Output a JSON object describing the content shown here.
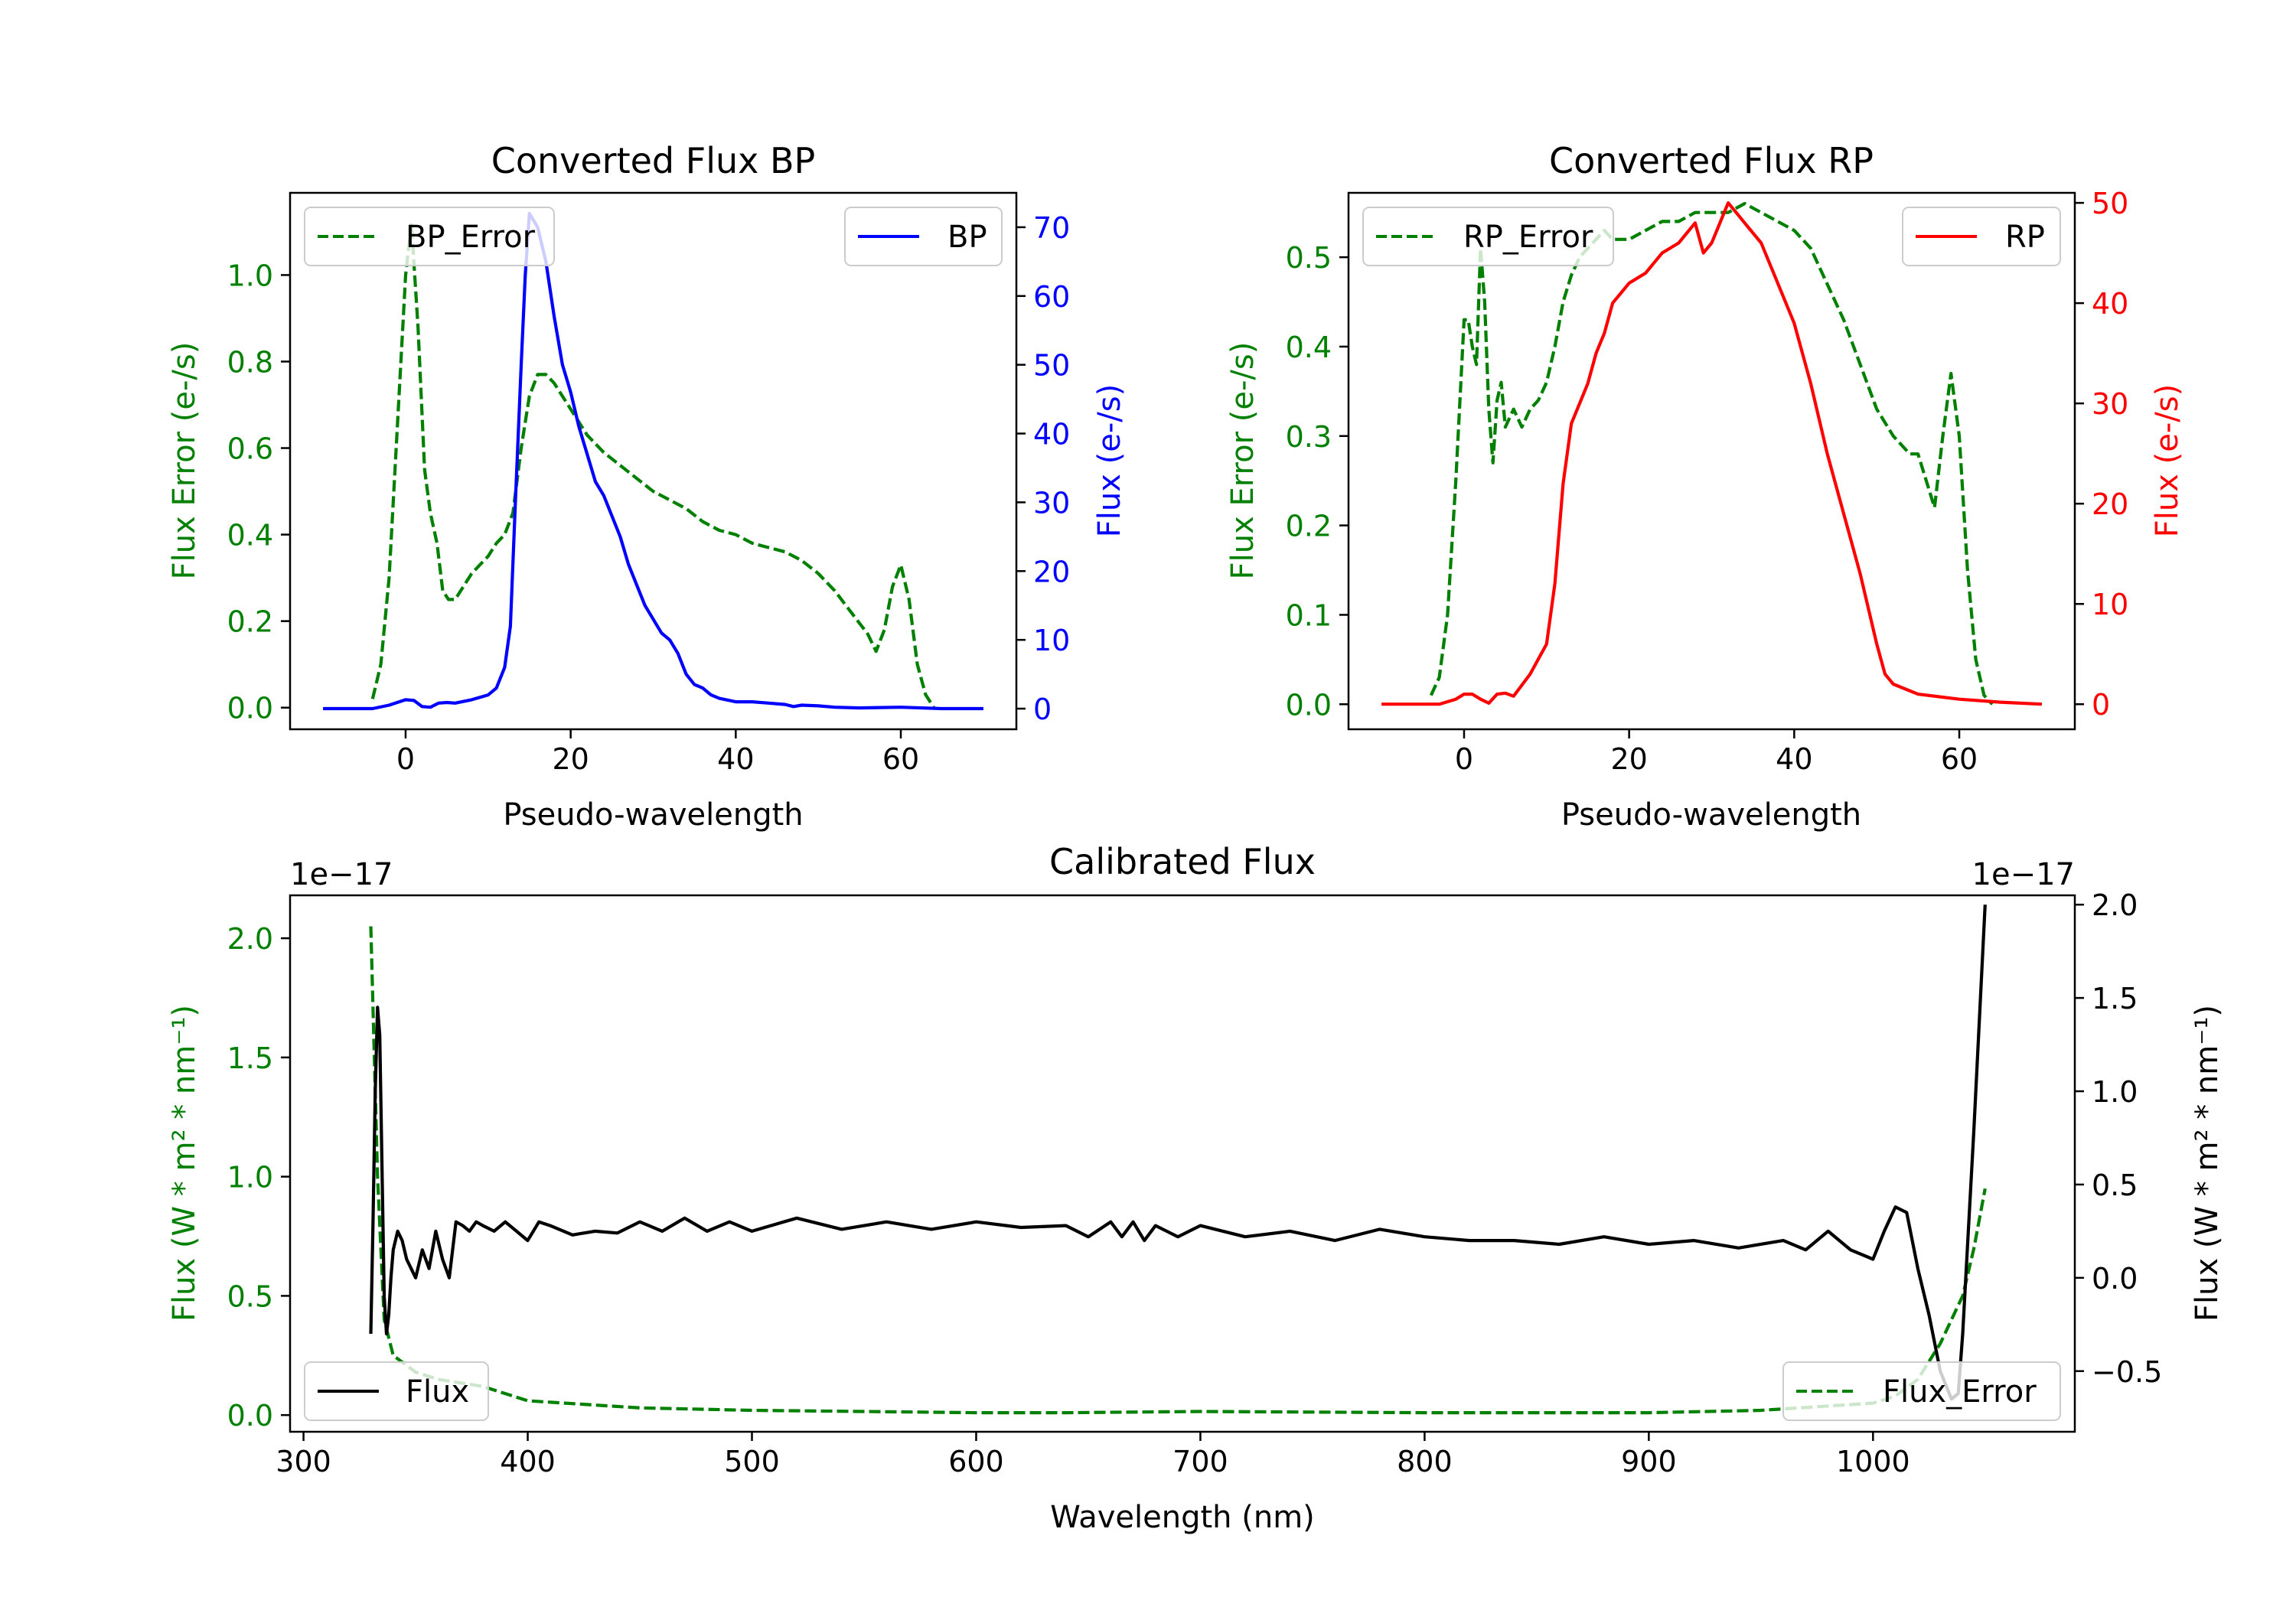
{
  "chart_data": [
    {
      "type": "line",
      "title": "Converted Flux BP",
      "xlabel": "Pseudo-wavelength",
      "ylabel_left": "Flux Error (e-/s)",
      "ylabel_right": "Flux (e-/s)",
      "xlim": [
        -14,
        74
      ],
      "ylim_left": [
        -0.05,
        1.19
      ],
      "ylim_right": [
        -3,
        75
      ],
      "xticks": [
        "0",
        "20",
        "40",
        "60"
      ],
      "yticks_left": [
        "0.0",
        "0.2",
        "0.4",
        "0.6",
        "0.8",
        "1.0"
      ],
      "yticks_right": [
        "0",
        "10",
        "20",
        "30",
        "40",
        "50",
        "60",
        "70"
      ],
      "legend_left": "BP_Error",
      "legend_right": "BP",
      "colors": {
        "error": "#008000",
        "flux": "#0000ff"
      },
      "series": [
        {
          "name": "BP_Error",
          "axis": "left",
          "style": "dashed",
          "x": [
            -4,
            -3,
            -2,
            -1,
            0,
            0.7,
            1.5,
            2.3,
            3,
            3.8,
            4.5,
            5.2,
            6,
            7,
            8,
            9,
            10,
            11,
            12,
            13,
            14,
            15,
            16,
            17,
            18,
            19,
            20,
            21,
            22,
            24,
            26,
            28,
            30,
            32,
            34,
            36,
            38,
            40,
            42,
            44,
            46,
            48,
            50,
            52,
            54,
            56,
            57,
            58,
            59,
            60,
            61,
            62,
            63,
            64
          ],
          "y": [
            0.02,
            0.1,
            0.3,
            0.65,
            1.0,
            1.12,
            0.88,
            0.55,
            0.45,
            0.38,
            0.27,
            0.25,
            0.25,
            0.28,
            0.31,
            0.33,
            0.35,
            0.38,
            0.4,
            0.45,
            0.6,
            0.72,
            0.77,
            0.77,
            0.75,
            0.72,
            0.69,
            0.66,
            0.63,
            0.59,
            0.56,
            0.53,
            0.5,
            0.48,
            0.46,
            0.43,
            0.41,
            0.4,
            0.38,
            0.37,
            0.36,
            0.34,
            0.31,
            0.27,
            0.22,
            0.17,
            0.13,
            0.18,
            0.28,
            0.33,
            0.25,
            0.1,
            0.03,
            0.0
          ]
        },
        {
          "name": "BP",
          "axis": "right",
          "style": "solid",
          "x": [
            -10,
            -7,
            -4,
            -2,
            0,
            1,
            2,
            3,
            4,
            5,
            6,
            8,
            10,
            11,
            12,
            12.7,
            13.3,
            14,
            14.5,
            15,
            15.5,
            16,
            17,
            18,
            19,
            20,
            21,
            22,
            23,
            24,
            25,
            26,
            27,
            28,
            29,
            30,
            31,
            32,
            33,
            34,
            35,
            36,
            37,
            38,
            40,
            42,
            44,
            46,
            47,
            48,
            50,
            52,
            55,
            60,
            65,
            70
          ],
          "y": [
            0,
            0,
            0,
            0.5,
            1.3,
            1.2,
            0.3,
            0.2,
            0.8,
            0.9,
            0.8,
            1.3,
            2,
            3,
            6,
            12,
            30,
            50,
            63,
            72,
            71,
            70,
            65,
            57,
            50,
            46,
            41,
            37,
            33,
            31,
            28,
            25,
            21,
            18,
            15,
            13,
            11,
            10,
            8,
            5,
            3.5,
            3,
            2,
            1.5,
            1,
            1,
            0.8,
            0.6,
            0.3,
            0.5,
            0.4,
            0.2,
            0.1,
            0.2,
            0,
            0
          ]
        }
      ]
    },
    {
      "type": "line",
      "title": "Converted Flux RP",
      "xlabel": "Pseudo-wavelength",
      "ylabel_left": "Flux Error (e-/s)",
      "ylabel_right": "Flux (e-/s)",
      "xlim": [
        -14,
        74
      ],
      "ylim_left": [
        -0.028,
        0.572
      ],
      "ylim_right": [
        -2.5,
        51
      ],
      "xticks": [
        "0",
        "20",
        "40",
        "60"
      ],
      "yticks_left": [
        "0.0",
        "0.1",
        "0.2",
        "0.3",
        "0.4",
        "0.5"
      ],
      "yticks_right": [
        "0",
        "10",
        "20",
        "30",
        "40",
        "50"
      ],
      "legend_left": "RP_Error",
      "legend_right": "RP",
      "colors": {
        "error": "#008000",
        "flux": "#ff0000"
      },
      "series": [
        {
          "name": "RP_Error",
          "axis": "left",
          "style": "dashed",
          "x": [
            -4,
            -3,
            -2,
            -1,
            0,
            0.5,
            1,
            1.5,
            2,
            2.5,
            3,
            3.5,
            4,
            4.5,
            5,
            6,
            7,
            8,
            9,
            10,
            11,
            12,
            13,
            14,
            15,
            16,
            17,
            18,
            20,
            22,
            24,
            26,
            28,
            30,
            32,
            34,
            36,
            38,
            40,
            42,
            44,
            46,
            48,
            50,
            52,
            54,
            55,
            56,
            57,
            58,
            59,
            60,
            61,
            62,
            63,
            64
          ],
          "y": [
            0.01,
            0.03,
            0.1,
            0.25,
            0.43,
            0.43,
            0.4,
            0.38,
            0.51,
            0.45,
            0.33,
            0.27,
            0.34,
            0.36,
            0.31,
            0.33,
            0.31,
            0.33,
            0.34,
            0.36,
            0.4,
            0.45,
            0.48,
            0.5,
            0.51,
            0.52,
            0.53,
            0.52,
            0.52,
            0.53,
            0.54,
            0.54,
            0.55,
            0.55,
            0.55,
            0.56,
            0.55,
            0.54,
            0.53,
            0.51,
            0.47,
            0.43,
            0.38,
            0.33,
            0.3,
            0.28,
            0.28,
            0.25,
            0.22,
            0.3,
            0.37,
            0.3,
            0.15,
            0.05,
            0.01,
            0.0
          ]
        },
        {
          "name": "RP",
          "axis": "right",
          "style": "solid",
          "x": [
            -10,
            -6,
            -3,
            -1,
            0,
            1,
            2,
            3,
            4,
            5,
            6,
            8,
            10,
            11,
            12,
            13,
            14,
            15,
            16,
            17,
            18,
            19,
            20,
            22,
            24,
            26,
            28,
            29,
            30,
            31,
            32,
            33,
            34,
            36,
            38,
            40,
            42,
            44,
            46,
            48,
            50,
            51,
            52,
            55,
            60,
            65,
            70
          ],
          "y": [
            0,
            0,
            0,
            0.5,
            1,
            1,
            0.5,
            0.1,
            1,
            1.1,
            0.8,
            3,
            6,
            12,
            22,
            28,
            30,
            32,
            35,
            37,
            40,
            41,
            42,
            43,
            45,
            46,
            48,
            45,
            46,
            48,
            50,
            49,
            48,
            46,
            42,
            38,
            32,
            25,
            19,
            13,
            6,
            3,
            2,
            1,
            0.5,
            0.2,
            0
          ]
        }
      ]
    },
    {
      "type": "line",
      "title": "Calibrated Flux",
      "xlabel": "Wavelength (nm)",
      "ylabel_left": "Flux (W * m² * nm⁻¹)",
      "ylabel_right": "Flux (W * m² * nm⁻¹)",
      "offset_left": "1e−17",
      "offset_right": "1e−17",
      "xlim": [
        294,
        1090
      ],
      "ylim_left": [
        -0.07,
        2.18
      ],
      "ylim_right": [
        -0.825,
        2.05
      ],
      "xticks": [
        "300",
        "400",
        "500",
        "600",
        "700",
        "800",
        "900",
        "1000"
      ],
      "yticks_left": [
        "0.0",
        "0.5",
        "1.0",
        "1.5",
        "2.0"
      ],
      "yticks_right": [
        "−0.5",
        "0.0",
        "0.5",
        "1.0",
        "1.5",
        "2.0"
      ],
      "legend_left": "Flux",
      "legend_right": "Flux_Error",
      "colors": {
        "error": "#008000",
        "flux": "#000000"
      },
      "series": [
        {
          "name": "Flux_Error",
          "axis": "left",
          "style": "dashed",
          "x": [
            330,
            333,
            336,
            340,
            350,
            360,
            380,
            400,
            450,
            500,
            550,
            600,
            640,
            700,
            800,
            900,
            950,
            1000,
            1010,
            1020,
            1030,
            1040,
            1045,
            1050
          ],
          "y": [
            2.05,
            1.0,
            0.4,
            0.25,
            0.18,
            0.15,
            0.12,
            0.06,
            0.03,
            0.02,
            0.015,
            0.01,
            0.01,
            0.015,
            0.01,
            0.01,
            0.02,
            0.05,
            0.08,
            0.15,
            0.3,
            0.5,
            0.7,
            0.95
          ]
        },
        {
          "name": "Flux",
          "axis": "right",
          "style": "solid",
          "x": [
            330,
            331,
            332,
            333,
            334,
            335,
            336,
            337,
            338,
            339,
            340,
            342,
            344,
            346,
            348,
            350,
            353,
            356,
            359,
            362,
            365,
            368,
            371,
            374,
            377,
            380,
            385,
            390,
            395,
            400,
            405,
            410,
            420,
            430,
            440,
            450,
            460,
            470,
            480,
            490,
            500,
            520,
            540,
            560,
            580,
            600,
            620,
            640,
            650,
            660,
            665,
            670,
            675,
            680,
            690,
            700,
            720,
            740,
            760,
            780,
            800,
            820,
            840,
            860,
            880,
            900,
            920,
            940,
            960,
            970,
            980,
            990,
            1000,
            1005,
            1010,
            1015,
            1020,
            1025,
            1030,
            1035,
            1038,
            1040,
            1045,
            1050
          ],
          "y": [
            -0.3,
            0.3,
            1.0,
            1.45,
            1.3,
            0.6,
            -0.1,
            -0.3,
            -0.2,
            0.0,
            0.15,
            0.25,
            0.2,
            0.1,
            0.05,
            0.0,
            0.15,
            0.05,
            0.25,
            0.1,
            0.0,
            0.3,
            0.28,
            0.25,
            0.3,
            0.28,
            0.25,
            0.3,
            0.25,
            0.2,
            0.3,
            0.28,
            0.23,
            0.25,
            0.24,
            0.3,
            0.25,
            0.32,
            0.25,
            0.3,
            0.25,
            0.32,
            0.26,
            0.3,
            0.26,
            0.3,
            0.27,
            0.28,
            0.22,
            0.3,
            0.22,
            0.3,
            0.2,
            0.28,
            0.22,
            0.28,
            0.22,
            0.25,
            0.2,
            0.26,
            0.22,
            0.2,
            0.2,
            0.18,
            0.22,
            0.18,
            0.2,
            0.16,
            0.2,
            0.15,
            0.25,
            0.15,
            0.1,
            0.25,
            0.38,
            0.35,
            0.05,
            -0.2,
            -0.5,
            -0.65,
            -0.62,
            -0.3,
            0.8,
            2.0
          ]
        }
      ]
    }
  ]
}
